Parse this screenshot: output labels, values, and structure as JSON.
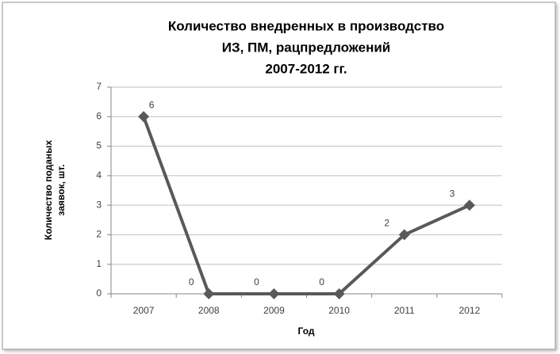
{
  "chart_data": {
    "type": "line",
    "title": [
      "Количество внедренных в производство",
      "ИЗ, ПМ,  рацпредложений",
      "2007-2012 гг."
    ],
    "y_label": [
      "Количество поданых",
      "заявок, шт."
    ],
    "x_label": "Год",
    "categories": [
      "2007",
      "2008",
      "2009",
      "2010",
      "2011",
      "2012"
    ],
    "values": [
      6,
      0,
      0,
      0,
      2,
      3
    ],
    "color": "#595959",
    "ylim": [
      0,
      7
    ],
    "yticks": [
      0,
      1,
      2,
      3,
      4,
      5,
      6,
      7
    ],
    "grid": true
  }
}
